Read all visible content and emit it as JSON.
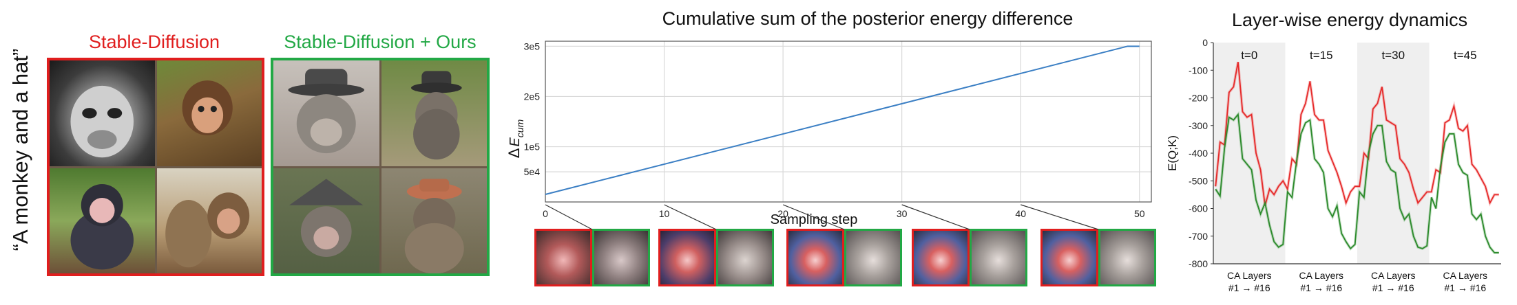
{
  "prompt_label": "“A monkey and a hat”",
  "group_left": {
    "title": "Stable-Diffusion",
    "color": "#e01e1e"
  },
  "group_right": {
    "title": "Stable-Diffusion + Ours",
    "color": "#22a845"
  },
  "chart_data": [
    {
      "type": "line",
      "title": "Cumulative sum of the posterior energy difference",
      "xlabel": "Sampling step",
      "ylabel": "ΔE_cum",
      "ylabel_main": "Δ",
      "ylabel_sub": "E",
      "ylabel_subsub": "cum",
      "xlim": [
        0,
        51
      ],
      "ylim": [
        -10000,
        310000
      ],
      "xticks": [
        0,
        10,
        20,
        30,
        40,
        50
      ],
      "xtick_labels": [
        "0",
        "10",
        "20",
        "30",
        "40",
        "50"
      ],
      "yticks": [
        50000,
        100000,
        200000,
        300000
      ],
      "ytick_labels": [
        "5e4",
        "1e5",
        "2e5",
        "3e5"
      ],
      "grid": true,
      "series": [
        {
          "color": "#3b7fc4",
          "x": [
            0,
            49,
            50
          ],
          "y": [
            5000,
            300000,
            300000
          ]
        }
      ],
      "thumbnail_steps": [
        0,
        10,
        20,
        30,
        40
      ]
    },
    {
      "type": "line",
      "title": "Layer-wise energy dynamics",
      "xlabel": "",
      "ylabel": "E(Q;K)",
      "ylim": [
        -800,
        0
      ],
      "yticks": [
        0,
        -100,
        -200,
        -300,
        -400,
        -500,
        -600,
        -700,
        -800
      ],
      "ytick_labels": [
        "0",
        "-100",
        "-200",
        "-300",
        "-400",
        "-500",
        "-600",
        "-700",
        "-800"
      ],
      "grid": false,
      "panels": [
        "t=0",
        "t=15",
        "t=30",
        "t=45"
      ],
      "panel_xlabel_line1": "CA Layers",
      "panel_xlabel_line2": "#1 → #16",
      "series": [
        {
          "color": "#e62a2a",
          "values": [
            [
              -520,
              -360,
              -370,
              -180,
              -160,
              -70,
              -250,
              -270,
              -260,
              -400,
              -460,
              -590,
              -530,
              -550,
              -520,
              -500
            ],
            [
              -530,
              -420,
              -440,
              -260,
              -220,
              -140,
              -260,
              -280,
              -280,
              -390,
              -430,
              -470,
              -520,
              -580,
              -540,
              -520
            ],
            [
              -520,
              -400,
              -420,
              -240,
              -220,
              -160,
              -280,
              -290,
              -300,
              -420,
              -440,
              -470,
              -530,
              -580,
              -560,
              -540
            ],
            [
              -540,
              -460,
              -470,
              -290,
              -280,
              -230,
              -310,
              -320,
              -300,
              -440,
              -460,
              -490,
              -520,
              -580,
              -550,
              -550
            ]
          ]
        },
        {
          "color": "#2b8a2b",
          "values": [
            [
              -530,
              -555,
              -380,
              -270,
              -280,
              -260,
              -420,
              -440,
              -460,
              -570,
              -620,
              -580,
              -660,
              -720,
              -740,
              -730
            ],
            [
              -540,
              -560,
              -430,
              -330,
              -290,
              -280,
              -420,
              -440,
              -470,
              -600,
              -630,
              -590,
              -690,
              -720,
              -745,
              -730
            ],
            [
              -540,
              -560,
              -400,
              -330,
              -300,
              -300,
              -430,
              -460,
              -470,
              -600,
              -640,
              -620,
              -700,
              -740,
              -745,
              -735
            ],
            [
              -560,
              -600,
              -450,
              -360,
              -330,
              -330,
              -440,
              -470,
              -480,
              -620,
              -640,
              -620,
              -700,
              -740,
              -760,
              -760
            ]
          ]
        }
      ]
    }
  ]
}
